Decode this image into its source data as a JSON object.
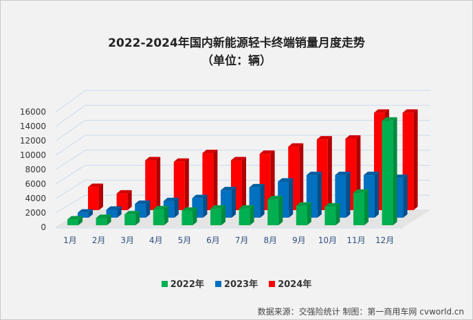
{
  "chart_data": {
    "type": "bar",
    "title": "2022-2024年国内新能源轻卡终端销量月度走势",
    "subtitle": "（单位：辆）",
    "categories": [
      "1月",
      "2月",
      "3月",
      "4月",
      "5月",
      "6月",
      "7月",
      "8月",
      "9月",
      "10月",
      "11月",
      "12月"
    ],
    "series": [
      {
        "name": "2022年",
        "color": "#00b050",
        "values": [
          800,
          1000,
          1500,
          2200,
          2000,
          2300,
          2300,
          3600,
          2700,
          2600,
          4500,
          14500
        ]
      },
      {
        "name": "2023年",
        "color": "#0070c0",
        "values": [
          700,
          1100,
          1900,
          2300,
          2700,
          3800,
          4200,
          5000,
          5900,
          5900,
          5900,
          5500
        ]
      },
      {
        "name": "2024年",
        "color": "#ff0000",
        "values": [
          3200,
          2300,
          6900,
          6700,
          7900,
          6900,
          7800,
          8800,
          9800,
          9900,
          13500,
          13500
        ]
      }
    ],
    "yticks": [
      "0",
      "2000",
      "4000",
      "6000",
      "8000",
      "10000",
      "12000",
      "14000",
      "16000"
    ],
    "ylim": [
      0,
      16000
    ],
    "grid": true,
    "legend": "bottom",
    "three_d": true
  },
  "source": "数据来源：交强险统计  制图：第一商用车网 cvworld.cn"
}
